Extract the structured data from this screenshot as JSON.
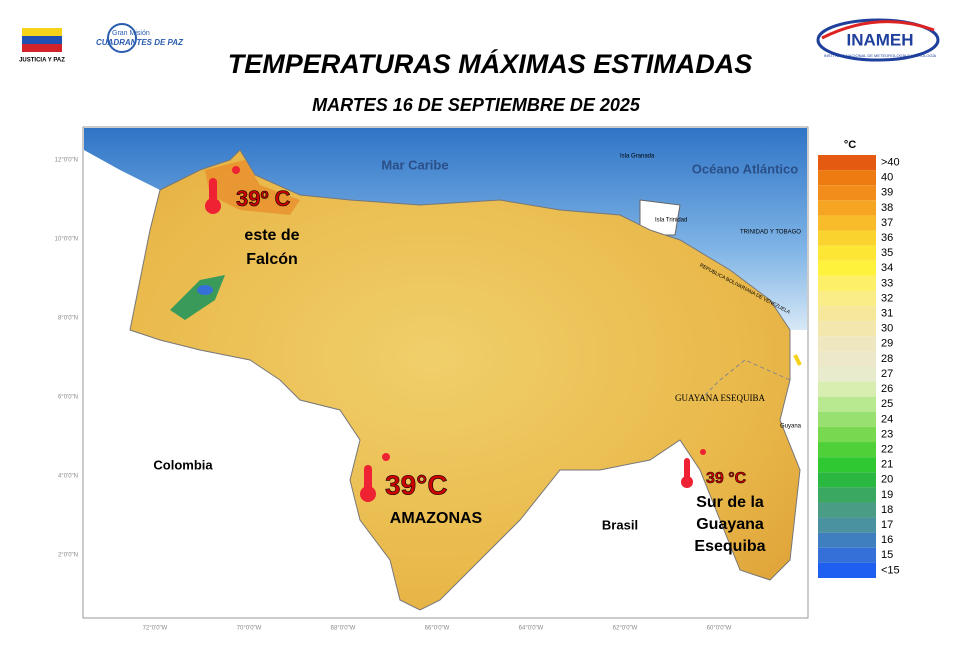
{
  "header": {
    "title": "TEMPERATURAS MÁXIMAS ESTIMADAS",
    "subtitle": "MARTES 16 DE SEPTIEMBRE DE 2025"
  },
  "logos": {
    "left_caption": "JUSTICIA Y PAZ",
    "mision_top": "Gran Misión",
    "mision_name": "CUADRANTES DE PAZ",
    "inameh": "INAMEH",
    "inameh_caption": "INSTITUTO NACIONAL DE METEOROLOGÍA E HIDROLOGÍA"
  },
  "map": {
    "labels": [
      "Mar Caribe",
      "Océano Atlántico",
      "Colombia",
      "Brasil",
      "GUAYANA ESEQUIBA",
      "TRINIDAD Y TOBAGO",
      "REPUBLICA BOLIVARIANA DE VENEZUELA",
      "Isla Trinidad",
      "Isla Granada",
      "Guyana"
    ],
    "lat_labels": [
      "12°0'0\"N",
      "10°0'0\"N",
      "8°0'0\"N",
      "6°0'0\"N",
      "4°0'0\"N",
      "2°0'0\"N"
    ],
    "lon_labels": [
      "72°0'0\"W",
      "70°0'0\"W",
      "68°0'0\"W",
      "66°0'0\"W",
      "64°0'0\"W",
      "62°0'0\"W",
      "60°0'0\"W"
    ]
  },
  "annotations": [
    {
      "temp": "39º C",
      "place": "este de Falcón"
    },
    {
      "temp": "39°C",
      "place": "AMAZONAS"
    },
    {
      "temp": "39 °C",
      "place": "Sur de la Guayana Esequiba"
    }
  ],
  "legend": {
    "title": "°C",
    "items": [
      {
        "label": ">40",
        "color": "#e35a10"
      },
      {
        "label": "40",
        "color": "#ee7a12"
      },
      {
        "label": "39",
        "color": "#f28c1a"
      },
      {
        "label": "38",
        "color": "#f6a523"
      },
      {
        "label": "37",
        "color": "#f8bb2a"
      },
      {
        "label": "36",
        "color": "#fbd32e"
      },
      {
        "label": "35",
        "color": "#fde634"
      },
      {
        "label": "34",
        "color": "#fff23c"
      },
      {
        "label": "33",
        "color": "#fdf068"
      },
      {
        "label": "32",
        "color": "#faec86"
      },
      {
        "label": "31",
        "color": "#f6e89a"
      },
      {
        "label": "30",
        "color": "#f3e7ae"
      },
      {
        "label": "29",
        "color": "#efe7bf"
      },
      {
        "label": "28",
        "color": "#ece8c9"
      },
      {
        "label": "27",
        "color": "#e8ebcc"
      },
      {
        "label": "26",
        "color": "#d8eeb0"
      },
      {
        "label": "25",
        "color": "#b8e890"
      },
      {
        "label": "24",
        "color": "#98e070"
      },
      {
        "label": "23",
        "color": "#78d850"
      },
      {
        "label": "22",
        "color": "#50d038"
      },
      {
        "label": "21",
        "color": "#30c830"
      },
      {
        "label": "20",
        "color": "#2ab840"
      },
      {
        "label": "19",
        "color": "#3aa860"
      },
      {
        "label": "18",
        "color": "#4a9c84"
      },
      {
        "label": "17",
        "color": "#4a92a0"
      },
      {
        "label": "16",
        "color": "#3f7fbf"
      },
      {
        "label": "15",
        "color": "#3570d8"
      },
      {
        "label": "<15",
        "color": "#1e5ef0"
      }
    ]
  }
}
